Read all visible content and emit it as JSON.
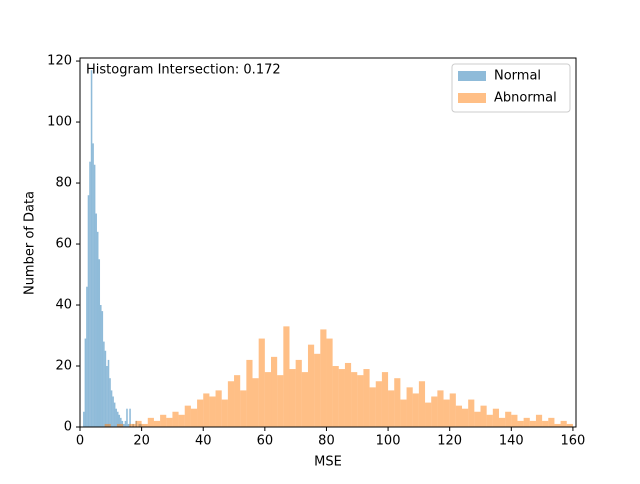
{
  "chart_data": {
    "type": "histogram",
    "annotation": "Histogram Intersection: 0.172",
    "x_label": "MSE",
    "y_label": "Number of Data",
    "xlim": [
      0,
      161
    ],
    "ylim": [
      0,
      121
    ],
    "xticks": [
      0,
      20,
      40,
      60,
      80,
      100,
      120,
      140,
      160
    ],
    "yticks": [
      0,
      20,
      40,
      60,
      80,
      100,
      120
    ],
    "legend": "upper right",
    "series": [
      {
        "name": "Normal",
        "color": "#1f77b4",
        "opacity": 0.5,
        "bins": [
          1,
          1.5,
          2,
          2.5,
          3,
          3.5,
          4,
          4.5,
          5,
          5.5,
          6,
          6.5,
          7,
          7.5,
          8,
          8.5,
          9,
          9.5,
          10,
          10.5,
          11,
          11.5,
          12,
          12.5,
          13,
          13.5,
          14,
          14.5,
          15,
          15.5,
          16,
          16.5,
          17,
          17.5,
          18,
          18.5,
          19,
          19.5,
          20
        ],
        "values": [
          5,
          29,
          46,
          76,
          87,
          117,
          93,
          86,
          70,
          64,
          55,
          40,
          38,
          28,
          25,
          20,
          22,
          16,
          12,
          10,
          8,
          6,
          5,
          4,
          3,
          2,
          1,
          2,
          6,
          1,
          6,
          0,
          1,
          0,
          2,
          0,
          1,
          1
        ]
      },
      {
        "name": "Abnormal",
        "color": "#ff7f0e",
        "opacity": 0.5,
        "bins": [
          8,
          10,
          12,
          14,
          16,
          18,
          20,
          22,
          24,
          26,
          28,
          30,
          32,
          34,
          36,
          38,
          40,
          42,
          44,
          46,
          48,
          50,
          52,
          54,
          56,
          58,
          60,
          62,
          64,
          66,
          68,
          70,
          72,
          74,
          76,
          78,
          80,
          82,
          84,
          86,
          88,
          90,
          92,
          94,
          96,
          98,
          100,
          102,
          104,
          106,
          108,
          110,
          112,
          114,
          116,
          118,
          120,
          122,
          124,
          126,
          128,
          130,
          132,
          134,
          136,
          138,
          140,
          142,
          144,
          146,
          148,
          150,
          152,
          154,
          156,
          158,
          160
        ],
        "values": [
          1,
          0,
          1,
          0,
          1,
          2,
          1,
          3,
          2,
          4,
          3,
          5,
          4,
          7,
          6,
          9,
          11,
          10,
          12,
          9,
          15,
          17,
          12,
          22,
          16,
          29,
          18,
          23,
          17,
          33,
          19,
          22,
          18,
          27,
          24,
          32,
          29,
          20,
          19,
          21,
          18,
          17,
          19,
          13,
          15,
          18,
          12,
          16,
          9,
          13,
          11,
          15,
          8,
          10,
          12,
          9,
          11,
          7,
          6,
          9,
          5,
          7,
          4,
          6,
          3,
          5,
          4,
          2,
          3,
          2,
          4,
          2,
          3,
          1,
          2,
          1
        ]
      }
    ]
  }
}
